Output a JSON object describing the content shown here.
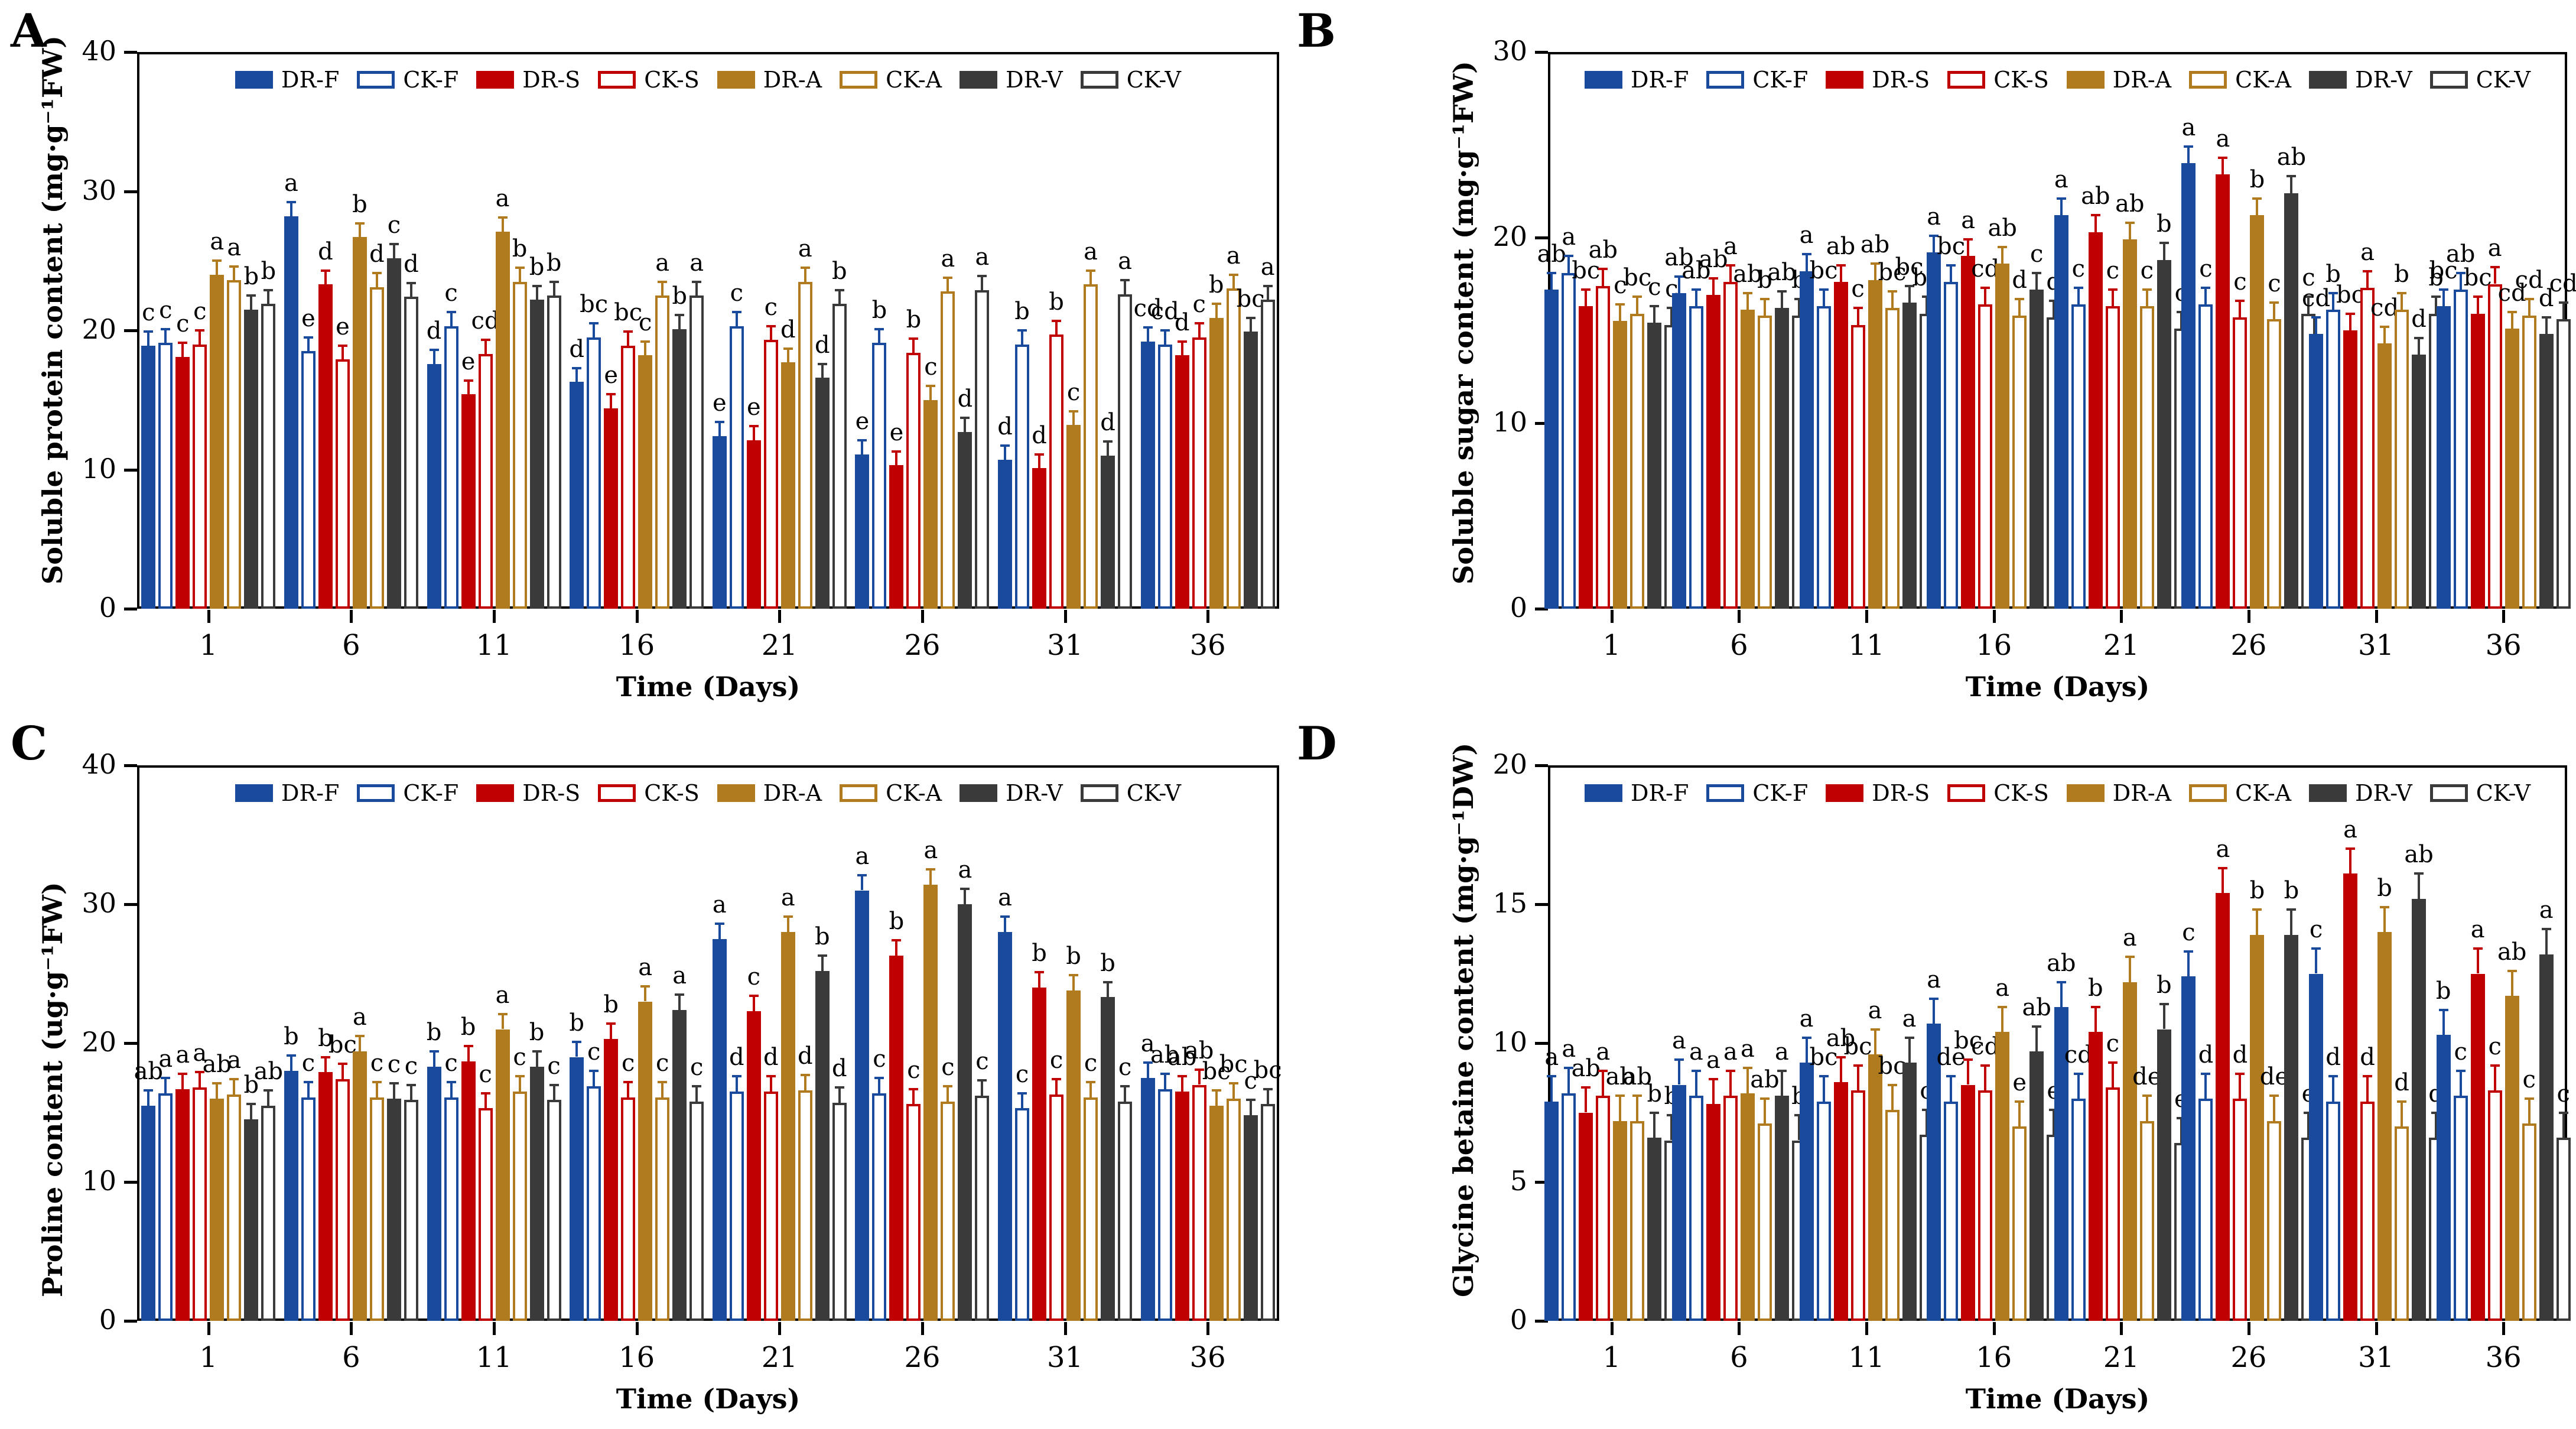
{
  "figure": {
    "xlabel": "Time (Days)",
    "categories": [
      "1",
      "6",
      "11",
      "16",
      "21",
      "26",
      "31",
      "36"
    ],
    "legend": [
      "DR-F",
      "CK-F",
      "DR-S",
      "CK-S",
      "DR-A",
      "CK-A",
      "DR-V",
      "CK-V"
    ],
    "colors": {
      "blue": "#1a4a9c",
      "red": "#c00000",
      "gold": "#b07a1e",
      "dark": "#3a3a3a"
    }
  },
  "chart_data": [
    {
      "panel": "A",
      "type": "bar",
      "ylabel": "Soluble protein content (mg·g⁻¹FW)",
      "xlabel": "Time (Days)",
      "ylim": [
        0,
        40
      ],
      "yticks": [
        0,
        10,
        20,
        30,
        40
      ],
      "categories": [
        "1",
        "6",
        "11",
        "16",
        "21",
        "26",
        "31",
        "36"
      ],
      "err": 1.0,
      "series": [
        {
          "name": "DR-F",
          "color": "#1a4a9c",
          "fill": "solid",
          "values": [
            18.9,
            28.2,
            17.6,
            16.3,
            12.4,
            11.1,
            10.7,
            19.2
          ],
          "letters": [
            "c",
            "a",
            "d",
            "d",
            "e",
            "e",
            "d",
            "cd"
          ]
        },
        {
          "name": "CK-F",
          "color": "#1a4a9c",
          "fill": "open",
          "values": [
            19.1,
            18.5,
            20.3,
            19.5,
            20.3,
            19.1,
            19.0,
            19.0
          ],
          "letters": [
            "c",
            "e",
            "c",
            "bc",
            "c",
            "b",
            "b",
            "cd"
          ]
        },
        {
          "name": "DR-S",
          "color": "#c00000",
          "fill": "solid",
          "values": [
            18.1,
            23.3,
            15.4,
            14.4,
            12.1,
            10.3,
            10.1,
            18.2
          ],
          "letters": [
            "c",
            "d",
            "e",
            "e",
            "e",
            "e",
            "d",
            "d"
          ]
        },
        {
          "name": "CK-S",
          "color": "#c00000",
          "fill": "open",
          "values": [
            19.0,
            17.9,
            18.3,
            18.9,
            19.3,
            18.4,
            19.7,
            19.5
          ],
          "letters": [
            "c",
            "e",
            "cd",
            "bc",
            "c",
            "b",
            "b",
            "c"
          ]
        },
        {
          "name": "DR-A",
          "color": "#b07a1e",
          "fill": "solid",
          "values": [
            24.0,
            26.7,
            27.1,
            18.2,
            17.7,
            15.0,
            13.2,
            20.9
          ],
          "letters": [
            "a",
            "b",
            "a",
            "c",
            "d",
            "c",
            "c",
            "b"
          ]
        },
        {
          "name": "CK-A",
          "color": "#b07a1e",
          "fill": "open",
          "values": [
            23.6,
            23.1,
            23.5,
            22.5,
            23.5,
            22.8,
            23.3,
            23.0
          ],
          "letters": [
            "a",
            "d",
            "b",
            "a",
            "a",
            "a",
            "a",
            "a"
          ]
        },
        {
          "name": "DR-V",
          "color": "#3a3a3a",
          "fill": "solid",
          "values": [
            21.5,
            25.2,
            22.2,
            20.1,
            16.6,
            12.7,
            11.0,
            19.9
          ],
          "letters": [
            "b",
            "c",
            "b",
            "b",
            "d",
            "d",
            "d",
            "bc"
          ]
        },
        {
          "name": "CK-V",
          "color": "#3a3a3a",
          "fill": "open",
          "values": [
            21.9,
            22.4,
            22.5,
            22.5,
            21.9,
            22.9,
            22.6,
            22.2
          ],
          "letters": [
            "b",
            "d",
            "b",
            "a",
            "b",
            "a",
            "a",
            "a"
          ]
        }
      ]
    },
    {
      "panel": "B",
      "type": "bar",
      "ylabel": "Soluble sugar content (mg·g⁻¹FW)",
      "xlabel": "Time (Days)",
      "ylim": [
        0,
        30
      ],
      "yticks": [
        0,
        10,
        20,
        30
      ],
      "categories": [
        "1",
        "6",
        "11",
        "16",
        "21",
        "26",
        "31",
        "36"
      ],
      "err": 0.9,
      "series": [
        {
          "name": "DR-F",
          "color": "#1a4a9c",
          "fill": "solid",
          "values": [
            17.2,
            17.0,
            18.2,
            19.2,
            21.2,
            24.0,
            14.8,
            16.3
          ],
          "letters": [
            "ab",
            "ab",
            "a",
            "a",
            "a",
            "a",
            "cd",
            "bc"
          ]
        },
        {
          "name": "CK-F",
          "color": "#1a4a9c",
          "fill": "open",
          "values": [
            18.1,
            16.3,
            16.3,
            17.6,
            16.4,
            16.4,
            16.1,
            17.2
          ],
          "letters": [
            "a",
            "ab",
            "bc",
            "bc",
            "c",
            "c",
            "b",
            "ab"
          ]
        },
        {
          "name": "DR-S",
          "color": "#c00000",
          "fill": "solid",
          "values": [
            16.3,
            16.9,
            17.6,
            19.0,
            20.3,
            23.4,
            15.0,
            15.9
          ],
          "letters": [
            "bc",
            "ab",
            "ab",
            "a",
            "ab",
            "a",
            "bc",
            "bc"
          ]
        },
        {
          "name": "CK-S",
          "color": "#c00000",
          "fill": "open",
          "values": [
            17.4,
            17.6,
            15.3,
            16.4,
            16.3,
            15.7,
            17.3,
            17.5
          ],
          "letters": [
            "ab",
            "a",
            "c",
            "cd",
            "c",
            "c",
            "a",
            "a"
          ]
        },
        {
          "name": "DR-A",
          "color": "#b07a1e",
          "fill": "solid",
          "values": [
            15.5,
            16.1,
            17.7,
            18.6,
            19.9,
            21.2,
            14.3,
            15.1
          ],
          "letters": [
            "c",
            "ab",
            "ab",
            "ab",
            "ab",
            "b",
            "cd",
            "cd"
          ]
        },
        {
          "name": "CK-A",
          "color": "#b07a1e",
          "fill": "open",
          "values": [
            15.9,
            15.8,
            16.2,
            15.8,
            16.3,
            15.6,
            16.1,
            15.8
          ],
          "letters": [
            "bc",
            "b",
            "bc",
            "d",
            "c",
            "c",
            "b",
            "cd"
          ]
        },
        {
          "name": "DR-V",
          "color": "#3a3a3a",
          "fill": "solid",
          "values": [
            15.4,
            16.2,
            16.5,
            17.2,
            18.8,
            22.4,
            13.7,
            14.8
          ],
          "letters": [
            "c",
            "ab",
            "bc",
            "c",
            "b",
            "ab",
            "d",
            "d"
          ]
        },
        {
          "name": "CK-V",
          "color": "#3a3a3a",
          "fill": "open",
          "values": [
            15.3,
            15.8,
            15.9,
            15.7,
            15.1,
            15.9,
            15.9,
            15.6
          ],
          "letters": [
            "c",
            "b",
            "bc",
            "d",
            "c",
            "c",
            "b",
            "cd"
          ]
        }
      ]
    },
    {
      "panel": "C",
      "type": "bar",
      "ylabel": "Proline content (ug·g⁻¹FW)",
      "xlabel": "Time (Days)",
      "ylim": [
        0,
        40
      ],
      "yticks": [
        0,
        10,
        20,
        30,
        40
      ],
      "categories": [
        "1",
        "6",
        "11",
        "16",
        "21",
        "26",
        "31",
        "36"
      ],
      "err": 1.1,
      "series": [
        {
          "name": "DR-F",
          "color": "#1a4a9c",
          "fill": "solid",
          "values": [
            15.5,
            18.0,
            18.3,
            19.0,
            27.5,
            31.0,
            28.0,
            17.5
          ],
          "letters": [
            "ab",
            "b",
            "b",
            "b",
            "a",
            "a",
            "a",
            "a"
          ]
        },
        {
          "name": "CK-F",
          "color": "#1a4a9c",
          "fill": "open",
          "values": [
            16.4,
            16.1,
            16.1,
            16.9,
            16.5,
            16.4,
            15.3,
            16.7
          ],
          "letters": [
            "a",
            "c",
            "c",
            "c",
            "d",
            "c",
            "c",
            "ab"
          ]
        },
        {
          "name": "DR-S",
          "color": "#c00000",
          "fill": "solid",
          "values": [
            16.7,
            17.9,
            18.7,
            20.3,
            22.3,
            26.3,
            24.0,
            16.5
          ],
          "letters": [
            "a",
            "b",
            "b",
            "b",
            "c",
            "b",
            "b",
            "ab"
          ]
        },
        {
          "name": "CK-S",
          "color": "#c00000",
          "fill": "open",
          "values": [
            16.8,
            17.4,
            15.3,
            16.1,
            16.5,
            15.6,
            16.3,
            17.0
          ],
          "letters": [
            "a",
            "bc",
            "c",
            "c",
            "d",
            "c",
            "c",
            "ab"
          ]
        },
        {
          "name": "DR-A",
          "color": "#b07a1e",
          "fill": "solid",
          "values": [
            16.0,
            19.4,
            21.0,
            23.0,
            28.0,
            31.4,
            23.8,
            15.5
          ],
          "letters": [
            "ab",
            "a",
            "a",
            "a",
            "a",
            "a",
            "b",
            "bc"
          ]
        },
        {
          "name": "CK-A",
          "color": "#b07a1e",
          "fill": "open",
          "values": [
            16.3,
            16.1,
            16.5,
            16.1,
            16.6,
            15.8,
            16.1,
            16.0
          ],
          "letters": [
            "a",
            "c",
            "c",
            "c",
            "d",
            "c",
            "c",
            "bc"
          ]
        },
        {
          "name": "DR-V",
          "color": "#3a3a3a",
          "fill": "solid",
          "values": [
            14.5,
            16.0,
            18.3,
            22.4,
            25.2,
            30.0,
            23.3,
            14.8
          ],
          "letters": [
            "b",
            "c",
            "b",
            "a",
            "b",
            "a",
            "b",
            "c"
          ]
        },
        {
          "name": "CK-V",
          "color": "#3a3a3a",
          "fill": "open",
          "values": [
            15.5,
            15.9,
            15.9,
            15.8,
            15.7,
            16.2,
            15.8,
            15.6
          ],
          "letters": [
            "ab",
            "c",
            "c",
            "c",
            "d",
            "c",
            "c",
            "bc"
          ]
        }
      ]
    },
    {
      "panel": "D",
      "type": "bar",
      "ylabel": "Glycine betaine content (mg·g⁻¹DW)",
      "xlabel": "Time (Days)",
      "ylim": [
        0,
        20
      ],
      "yticks": [
        0,
        5,
        10,
        15,
        20
      ],
      "categories": [
        "1",
        "6",
        "11",
        "16",
        "21",
        "26",
        "31",
        "36"
      ],
      "err": 0.9,
      "series": [
        {
          "name": "DR-F",
          "color": "#1a4a9c",
          "fill": "solid",
          "values": [
            7.9,
            8.5,
            9.3,
            10.7,
            11.3,
            12.4,
            12.5,
            10.3
          ],
          "letters": [
            "a",
            "a",
            "a",
            "a",
            "ab",
            "c",
            "c",
            "b"
          ]
        },
        {
          "name": "CK-F",
          "color": "#1a4a9c",
          "fill": "open",
          "values": [
            8.2,
            8.1,
            7.9,
            7.9,
            8.0,
            8.0,
            7.9,
            8.1
          ],
          "letters": [
            "a",
            "a",
            "bc",
            "de",
            "cd",
            "d",
            "d",
            "c"
          ]
        },
        {
          "name": "DR-S",
          "color": "#c00000",
          "fill": "solid",
          "values": [
            7.5,
            7.8,
            8.6,
            8.5,
            10.4,
            15.4,
            16.1,
            12.5
          ],
          "letters": [
            "ab",
            "a",
            "ab",
            "bc",
            "b",
            "a",
            "a",
            "a"
          ]
        },
        {
          "name": "CK-S",
          "color": "#c00000",
          "fill": "open",
          "values": [
            8.1,
            8.1,
            8.3,
            8.3,
            8.4,
            8.0,
            7.9,
            8.3
          ],
          "letters": [
            "a",
            "a",
            "bc",
            "cd",
            "c",
            "d",
            "d",
            "c"
          ]
        },
        {
          "name": "DR-A",
          "color": "#b07a1e",
          "fill": "solid",
          "values": [
            7.2,
            8.2,
            9.6,
            10.4,
            12.2,
            13.9,
            14.0,
            11.7
          ],
          "letters": [
            "ab",
            "a",
            "a",
            "a",
            "a",
            "b",
            "b",
            "ab"
          ]
        },
        {
          "name": "CK-A",
          "color": "#b07a1e",
          "fill": "open",
          "values": [
            7.2,
            7.1,
            7.6,
            7.0,
            7.2,
            7.2,
            7.0,
            7.1
          ],
          "letters": [
            "ab",
            "ab",
            "bc",
            "e",
            "de",
            "de",
            "d",
            "c"
          ]
        },
        {
          "name": "DR-V",
          "color": "#3a3a3a",
          "fill": "solid",
          "values": [
            6.6,
            8.1,
            9.3,
            9.7,
            10.5,
            13.9,
            15.2,
            13.2
          ],
          "letters": [
            "b",
            "a",
            "a",
            "ab",
            "b",
            "b",
            "ab",
            "a"
          ]
        },
        {
          "name": "CK-V",
          "color": "#3a3a3a",
          "fill": "open",
          "values": [
            6.5,
            6.5,
            6.7,
            6.7,
            6.4,
            6.6,
            6.6,
            6.6
          ],
          "letters": [
            "b",
            "b",
            "c",
            "e",
            "e",
            "e",
            "d",
            "c"
          ]
        }
      ]
    }
  ]
}
